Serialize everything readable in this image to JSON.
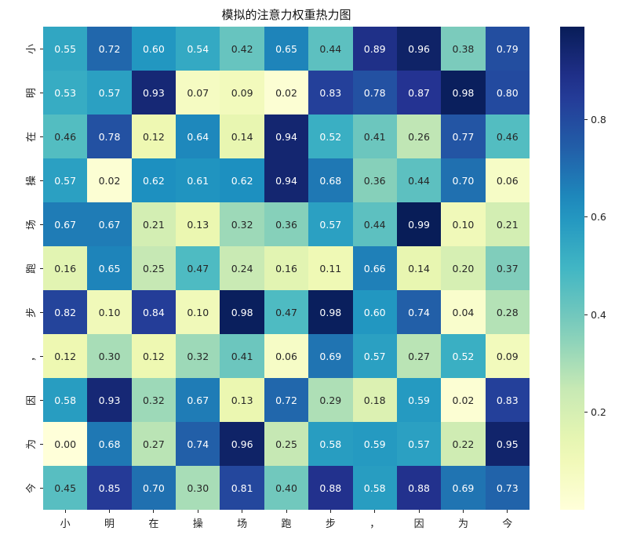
{
  "chart_data": {
    "type": "heatmap",
    "title": "模拟的注意力权重热力图",
    "xlabel": "",
    "ylabel": "",
    "x_labels": [
      "小",
      "明",
      "在",
      "操",
      "场",
      "跑",
      "步",
      "，",
      "因",
      "为",
      "今"
    ],
    "y_labels": [
      "小",
      "明",
      "在",
      "操",
      "场",
      "跑",
      "步",
      "，",
      "因",
      "为",
      "今"
    ],
    "values": [
      [
        0.55,
        0.72,
        0.6,
        0.54,
        0.42,
        0.65,
        0.44,
        0.89,
        0.96,
        0.38,
        0.79
      ],
      [
        0.53,
        0.57,
        0.93,
        0.07,
        0.09,
        0.02,
        0.83,
        0.78,
        0.87,
        0.98,
        0.8
      ],
      [
        0.46,
        0.78,
        0.12,
        0.64,
        0.14,
        0.94,
        0.52,
        0.41,
        0.26,
        0.77,
        0.46
      ],
      [
        0.57,
        0.02,
        0.62,
        0.61,
        0.62,
        0.94,
        0.68,
        0.36,
        0.44,
        0.7,
        0.06
      ],
      [
        0.67,
        0.67,
        0.21,
        0.13,
        0.32,
        0.36,
        0.57,
        0.44,
        0.99,
        0.1,
        0.21
      ],
      [
        0.16,
        0.65,
        0.25,
        0.47,
        0.24,
        0.16,
        0.11,
        0.66,
        0.14,
        0.2,
        0.37
      ],
      [
        0.82,
        0.1,
        0.84,
        0.1,
        0.98,
        0.47,
        0.98,
        0.6,
        0.74,
        0.04,
        0.28
      ],
      [
        0.12,
        0.3,
        0.12,
        0.32,
        0.41,
        0.06,
        0.69,
        0.57,
        0.27,
        0.52,
        0.09
      ],
      [
        0.58,
        0.93,
        0.32,
        0.67,
        0.13,
        0.72,
        0.29,
        0.18,
        0.59,
        0.02,
        0.83
      ],
      [
        0.0,
        0.68,
        0.27,
        0.74,
        0.96,
        0.25,
        0.58,
        0.59,
        0.57,
        0.22,
        0.95
      ],
      [
        0.45,
        0.85,
        0.7,
        0.3,
        0.81,
        0.4,
        0.88,
        0.58,
        0.88,
        0.69,
        0.73
      ]
    ],
    "colormap": "YlGnBu",
    "vmin": 0.0,
    "vmax": 0.99,
    "annotations": true,
    "value_format": "0.00",
    "colorbar": {
      "ticks": [
        0.2,
        0.4,
        0.6,
        0.8
      ],
      "position": "right"
    },
    "grid": false
  },
  "colors": {
    "colormap_stops": [
      "#ffffd9",
      "#edf8b1",
      "#c7e9b4",
      "#7fcdbb",
      "#41b6c4",
      "#1d91c0",
      "#225ea8",
      "#253494",
      "#081d58"
    ],
    "text_dark": "#262626",
    "text_light": "#ffffff"
  }
}
